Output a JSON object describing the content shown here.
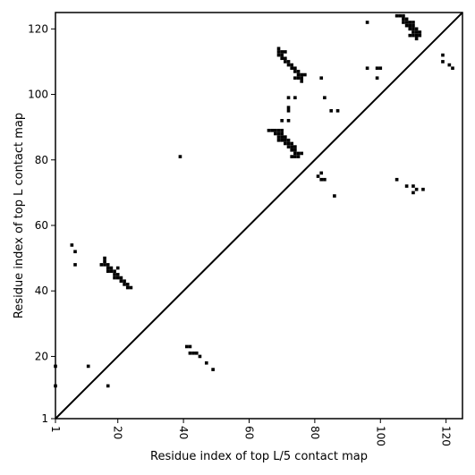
{
  "chart_data": {
    "type": "heatmap",
    "title": "",
    "xlabel": "Residue index of top L/5 contact map",
    "ylabel": "Residue index of top L contact map",
    "xlim": [
      1,
      125
    ],
    "ylim": [
      1,
      125
    ],
    "x_ticks": [
      1,
      20,
      40,
      60,
      80,
      100,
      120
    ],
    "y_ticks": [
      1,
      20,
      40,
      60,
      80,
      100,
      120
    ],
    "x_tick_rotation": -90,
    "diagonal": true,
    "grid": false,
    "cell_color": "#000000",
    "lower_triangle_cells": [
      [
        41,
        23
      ],
      [
        42,
        23
      ],
      [
        42,
        21
      ],
      [
        43,
        21
      ],
      [
        44,
        21
      ],
      [
        45,
        20
      ],
      [
        47,
        18
      ],
      [
        49,
        16
      ]
    ],
    "upper_triangle_cells": [
      [
        1,
        17
      ],
      [
        1,
        11
      ],
      [
        6,
        54
      ],
      [
        7,
        52
      ],
      [
        7,
        48
      ],
      [
        11,
        17
      ],
      [
        17,
        11
      ],
      [
        16,
        50
      ],
      [
        16,
        49
      ],
      [
        15,
        48
      ],
      [
        16,
        48
      ],
      [
        17,
        48
      ],
      [
        17,
        47
      ],
      [
        18,
        47
      ],
      [
        17,
        46
      ],
      [
        18,
        46
      ],
      [
        19,
        46
      ],
      [
        19,
        45
      ],
      [
        20,
        45
      ],
      [
        20,
        44
      ],
      [
        21,
        44
      ],
      [
        19,
        44
      ],
      [
        20,
        47
      ],
      [
        21,
        43
      ],
      [
        22,
        43
      ],
      [
        22,
        42
      ],
      [
        23,
        42
      ],
      [
        23,
        41
      ],
      [
        24,
        41
      ],
      [
        39,
        81
      ],
      [
        66,
        89
      ],
      [
        67,
        89
      ],
      [
        68,
        89
      ],
      [
        69,
        89
      ],
      [
        70,
        89
      ],
      [
        68,
        88
      ],
      [
        69,
        88
      ],
      [
        70,
        88
      ],
      [
        69,
        87
      ],
      [
        70,
        87
      ],
      [
        71,
        87
      ],
      [
        69,
        86
      ],
      [
        70,
        86
      ],
      [
        71,
        86
      ],
      [
        72,
        86
      ],
      [
        71,
        85
      ],
      [
        72,
        85
      ],
      [
        73,
        85
      ],
      [
        72,
        84
      ],
      [
        73,
        84
      ],
      [
        74,
        84
      ],
      [
        73,
        83
      ],
      [
        74,
        83
      ],
      [
        74,
        82
      ],
      [
        75,
        82
      ],
      [
        76,
        82
      ],
      [
        73,
        81
      ],
      [
        74,
        81
      ],
      [
        75,
        81
      ],
      [
        70,
        92
      ],
      [
        72,
        92
      ],
      [
        72,
        96
      ],
      [
        72,
        95
      ],
      [
        72,
        99
      ],
      [
        74,
        99
      ],
      [
        69,
        114
      ],
      [
        69,
        113
      ],
      [
        70,
        113
      ],
      [
        71,
        113
      ],
      [
        70,
        112
      ],
      [
        69,
        112
      ],
      [
        70,
        111
      ],
      [
        71,
        111
      ],
      [
        71,
        110
      ],
      [
        72,
        110
      ],
      [
        72,
        109
      ],
      [
        73,
        109
      ],
      [
        73,
        108
      ],
      [
        74,
        108
      ],
      [
        74,
        107
      ],
      [
        75,
        107
      ],
      [
        75,
        106
      ],
      [
        76,
        106
      ],
      [
        77,
        106
      ],
      [
        74,
        105
      ],
      [
        75,
        105
      ],
      [
        76,
        105
      ],
      [
        76,
        104
      ],
      [
        82,
        105
      ],
      [
        83,
        99
      ],
      [
        85,
        95
      ],
      [
        87,
        95
      ],
      [
        81,
        75
      ],
      [
        82,
        76
      ],
      [
        82,
        74
      ],
      [
        83,
        74
      ],
      [
        86,
        69
      ],
      [
        96,
        122
      ],
      [
        96,
        108
      ],
      [
        99,
        108
      ],
      [
        100,
        108
      ],
      [
        99,
        105
      ],
      [
        105,
        124
      ],
      [
        106,
        124
      ],
      [
        107,
        124
      ],
      [
        107,
        123
      ],
      [
        108,
        123
      ],
      [
        107,
        122
      ],
      [
        108,
        122
      ],
      [
        109,
        122
      ],
      [
        110,
        122
      ],
      [
        108,
        121
      ],
      [
        109,
        121
      ],
      [
        110,
        121
      ],
      [
        109,
        120
      ],
      [
        110,
        120
      ],
      [
        111,
        120
      ],
      [
        110,
        119
      ],
      [
        111,
        119
      ],
      [
        112,
        119
      ],
      [
        109,
        118
      ],
      [
        110,
        118
      ],
      [
        111,
        118
      ],
      [
        112,
        118
      ],
      [
        111,
        117
      ],
      [
        105,
        74
      ],
      [
        108,
        72
      ],
      [
        110,
        72
      ],
      [
        111,
        71
      ],
      [
        110,
        70
      ],
      [
        113,
        71
      ],
      [
        119,
        112
      ],
      [
        119,
        110
      ],
      [
        121,
        109
      ],
      [
        122,
        108
      ]
    ]
  }
}
